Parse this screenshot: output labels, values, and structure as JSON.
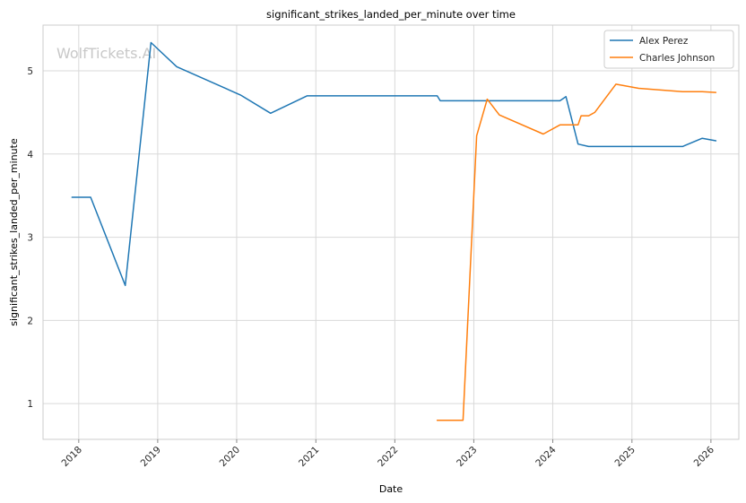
{
  "chart_data": {
    "type": "line",
    "title": "significant_strikes_landed_per_minute over time",
    "xlabel": "Date",
    "ylabel": "significant_strikes_landed_per_minute",
    "watermark": "WolfTickets.AI",
    "xlim": [
      "2017-07-20",
      "2026-05-10"
    ],
    "ylim": [
      0.57,
      5.55
    ],
    "x_ticks": [
      "2018",
      "2019",
      "2020",
      "2021",
      "2022",
      "2023",
      "2024",
      "2025",
      "2026"
    ],
    "y_ticks": [
      1,
      2,
      3,
      4,
      5
    ],
    "grid": true,
    "legend_position": "top-right",
    "series": [
      {
        "name": "Alex Perez",
        "color": "#1f77b4",
        "points": [
          [
            "2017-12-01",
            3.48
          ],
          [
            "2018-02-25",
            3.48
          ],
          [
            "2018-08-04",
            2.42
          ],
          [
            "2018-12-01",
            5.34
          ],
          [
            "2019-03-30",
            5.05
          ],
          [
            "2020-01-18",
            4.71
          ],
          [
            "2020-06-06",
            4.49
          ],
          [
            "2020-11-21",
            4.7
          ],
          [
            "2022-07-16",
            4.7
          ],
          [
            "2022-07-30",
            4.64
          ],
          [
            "2024-02-03",
            4.64
          ],
          [
            "2024-03-02",
            4.69
          ],
          [
            "2024-04-27",
            4.12
          ],
          [
            "2024-06-15",
            4.09
          ],
          [
            "2025-08-23",
            4.09
          ],
          [
            "2025-11-22",
            4.19
          ],
          [
            "2026-01-24",
            4.16
          ]
        ]
      },
      {
        "name": "Charles Johnson",
        "color": "#ff7f0e",
        "points": [
          [
            "2022-07-16",
            0.8
          ],
          [
            "2022-11-12",
            0.8
          ],
          [
            "2023-01-14",
            4.22
          ],
          [
            "2023-03-04",
            4.66
          ],
          [
            "2023-04-29",
            4.47
          ],
          [
            "2023-11-18",
            4.24
          ],
          [
            "2024-02-03",
            4.35
          ],
          [
            "2024-04-27",
            4.35
          ],
          [
            "2024-05-11",
            4.46
          ],
          [
            "2024-06-15",
            4.46
          ],
          [
            "2024-07-13",
            4.5
          ],
          [
            "2024-10-19",
            4.84
          ],
          [
            "2025-02-01",
            4.79
          ],
          [
            "2025-08-23",
            4.75
          ],
          [
            "2025-11-22",
            4.75
          ],
          [
            "2026-01-24",
            4.74
          ]
        ]
      }
    ]
  }
}
